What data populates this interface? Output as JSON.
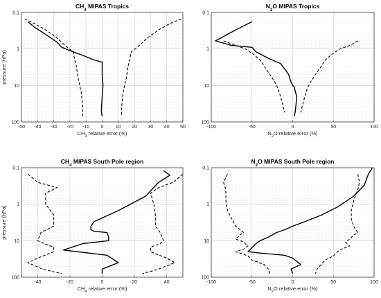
{
  "chart_data": [
    {
      "type": "line",
      "title": "CH4 MIPAS Tropics",
      "title_sub_position": 1,
      "xlabel": "CH4 relative error (%)",
      "xlabel_sub_position": 1,
      "ylabel": "pressure (hPa)",
      "xlim": [
        -50,
        50
      ],
      "ylim": [
        100,
        0.1
      ],
      "yscale": "log",
      "grid": true,
      "xticks": [
        "-50",
        "-40",
        "-30",
        "-20",
        "-10",
        "0",
        "10",
        "20",
        "30",
        "40",
        "50"
      ],
      "xtick_values": [
        -50,
        -40,
        -30,
        -20,
        -10,
        0,
        10,
        20,
        30,
        40,
        50
      ],
      "yticks": [
        "0.1",
        "1",
        "10",
        "100"
      ],
      "series": [
        {
          "style": "solid",
          "x": [
            -46,
            -42,
            -35,
            -28,
            -25,
            -18,
            -12,
            -5,
            0,
            0,
            0.5,
            0,
            -0.5,
            0
          ],
          "y": [
            0.18,
            0.25,
            0.4,
            0.65,
            0.9,
            1.2,
            1.5,
            2,
            2.3,
            5,
            10,
            20,
            50,
            70
          ]
        },
        {
          "style": "dashed",
          "x": [
            -48,
            -42,
            -35,
            -28,
            -23,
            -18,
            -17,
            -16,
            -15,
            -13,
            -12,
            -12
          ],
          "y": [
            0.15,
            0.2,
            0.3,
            0.5,
            0.8,
            1.2,
            2,
            3,
            6,
            15,
            40,
            70
          ]
        },
        {
          "style": "dashed",
          "x": [
            49,
            42,
            35,
            28,
            23,
            18,
            17,
            16,
            15,
            13,
            12,
            12
          ],
          "y": [
            0.15,
            0.2,
            0.3,
            0.5,
            0.8,
            1.2,
            2,
            3,
            6,
            15,
            40,
            70
          ]
        }
      ]
    },
    {
      "type": "line",
      "title": "N2O MIPAS Tropics",
      "title_sub_position": 0,
      "xlabel": "N2O relative error (%)",
      "xlabel_sub_position": 0,
      "ylabel": "",
      "xlim": [
        -100,
        100
      ],
      "ylim": [
        100,
        0.1
      ],
      "yscale": "log",
      "grid": true,
      "xticks": [
        "-100",
        "-50",
        "0",
        "50",
        "100"
      ],
      "xtick_values": [
        -100,
        -50,
        0,
        50,
        100
      ],
      "yticks": [
        "0.1",
        "1",
        "10",
        "100"
      ],
      "series": [
        {
          "style": "solid",
          "x": [
            -50,
            -70,
            -95,
            -75,
            -50,
            -45,
            -30,
            -15,
            -10,
            -5,
            -2,
            0,
            2,
            3,
            5,
            4,
            3,
            2
          ],
          "y": [
            0.18,
            0.3,
            0.6,
            0.8,
            0.9,
            1.2,
            1.8,
            2.5,
            3.5,
            5,
            8,
            10,
            11,
            14,
            20,
            35,
            55,
            70
          ]
        },
        {
          "style": "dashed",
          "x": [
            -85,
            -70,
            -58,
            -48,
            -40,
            -35,
            -28,
            -22,
            -18,
            -15,
            -12,
            -10
          ],
          "y": [
            0.6,
            0.8,
            1.0,
            1.4,
            2,
            3,
            5,
            8,
            12,
            20,
            35,
            55
          ]
        },
        {
          "style": "dashed",
          "x": [
            80,
            70,
            58,
            48,
            40,
            35,
            28,
            22,
            18,
            15,
            12,
            10
          ],
          "y": [
            0.6,
            0.8,
            1.0,
            1.4,
            2,
            3,
            5,
            8,
            12,
            20,
            35,
            55
          ]
        }
      ]
    },
    {
      "type": "line",
      "title": "CH4 MIPAS South Pole region",
      "title_sub_position": 1,
      "xlabel": "CH4 relative error (%)",
      "xlabel_sub_position": 1,
      "ylabel": "pressure (hPa)",
      "xlim": [
        -50,
        50
      ],
      "ylim": [
        100,
        0.1
      ],
      "yscale": "log",
      "grid": true,
      "xticks": [
        "-40",
        "-20",
        "0",
        "20",
        "40"
      ],
      "xtick_values": [
        -40,
        -20,
        0,
        20,
        40
      ],
      "yticks": [
        "0.1",
        "1",
        "10",
        "100"
      ],
      "series": [
        {
          "style": "solid",
          "x": [
            38,
            42,
            35,
            27,
            10,
            -5,
            -7,
            -7,
            -5,
            3,
            4,
            4,
            -12,
            -24,
            3,
            10,
            0,
            0
          ],
          "y": [
            0.12,
            0.16,
            0.25,
            0.6,
            1.5,
            3,
            4,
            5,
            5.5,
            6,
            8,
            10,
            12,
            18,
            25,
            40,
            60,
            80
          ]
        },
        {
          "style": "dashed",
          "x": [
            -46,
            -40,
            -28,
            -35,
            -35,
            -30,
            -30,
            -38,
            -40,
            -36,
            -30,
            -30,
            -40,
            -46,
            -37,
            -25
          ],
          "y": [
            0.15,
            0.25,
            0.35,
            0.5,
            1.0,
            2,
            4,
            6,
            10,
            12,
            15,
            20,
            30,
            40,
            60,
            80
          ]
        },
        {
          "style": "dashed",
          "x": [
            50,
            44,
            35,
            30,
            32,
            33,
            33,
            36,
            38,
            36,
            30,
            30,
            40,
            45,
            35,
            25
          ],
          "y": [
            0.15,
            0.25,
            0.35,
            0.5,
            1.0,
            2,
            4,
            6,
            10,
            12,
            15,
            20,
            30,
            40,
            60,
            80
          ]
        }
      ]
    },
    {
      "type": "line",
      "title": "N2O MIPAS South Pole region",
      "title_sub_position": 0,
      "xlabel": "N2O relative error (%)",
      "xlabel_sub_position": 0,
      "ylabel": "",
      "xlim": [
        -100,
        100
      ],
      "ylim": [
        100,
        0.1
      ],
      "yscale": "log",
      "grid": true,
      "xticks": [
        "-100",
        "-50",
        "0",
        "50",
        "100"
      ],
      "xtick_values": [
        -100,
        -50,
        0,
        50,
        100
      ],
      "yticks": [
        "0.1",
        "1",
        "10",
        "100"
      ],
      "series": [
        {
          "style": "solid",
          "x": [
            98,
            93,
            88,
            75,
            55,
            35,
            15,
            0,
            -10,
            -20,
            -30,
            -40,
            -45,
            -55,
            -38,
            -10,
            0,
            10,
            -2,
            0
          ],
          "y": [
            0.1,
            0.15,
            0.3,
            0.6,
            1.2,
            2,
            3,
            4,
            5,
            6,
            8,
            10,
            12,
            20,
            22,
            25,
            30,
            45,
            60,
            80
          ]
        },
        {
          "style": "dashed",
          "x": [
            -80,
            -85,
            -82,
            -82,
            -80,
            -75,
            -70,
            -60,
            -65,
            -70,
            -60,
            -55,
            -60,
            -70,
            -55,
            -50,
            -35,
            -30,
            -28
          ],
          "y": [
            0.15,
            0.25,
            0.4,
            0.8,
            1.5,
            2.5,
            4,
            6,
            7,
            9,
            11,
            14,
            17,
            20,
            26,
            34,
            45,
            60,
            80
          ]
        },
        {
          "style": "dashed",
          "x": [
            80,
            82,
            80,
            75,
            72,
            72,
            75,
            80,
            75,
            70,
            65,
            70,
            60,
            55,
            50,
            40,
            35,
            30,
            28
          ],
          "y": [
            0.15,
            0.25,
            0.4,
            0.8,
            1.5,
            2.5,
            4,
            6,
            7,
            9,
            11,
            14,
            17,
            20,
            26,
            34,
            45,
            60,
            80
          ]
        }
      ]
    }
  ]
}
